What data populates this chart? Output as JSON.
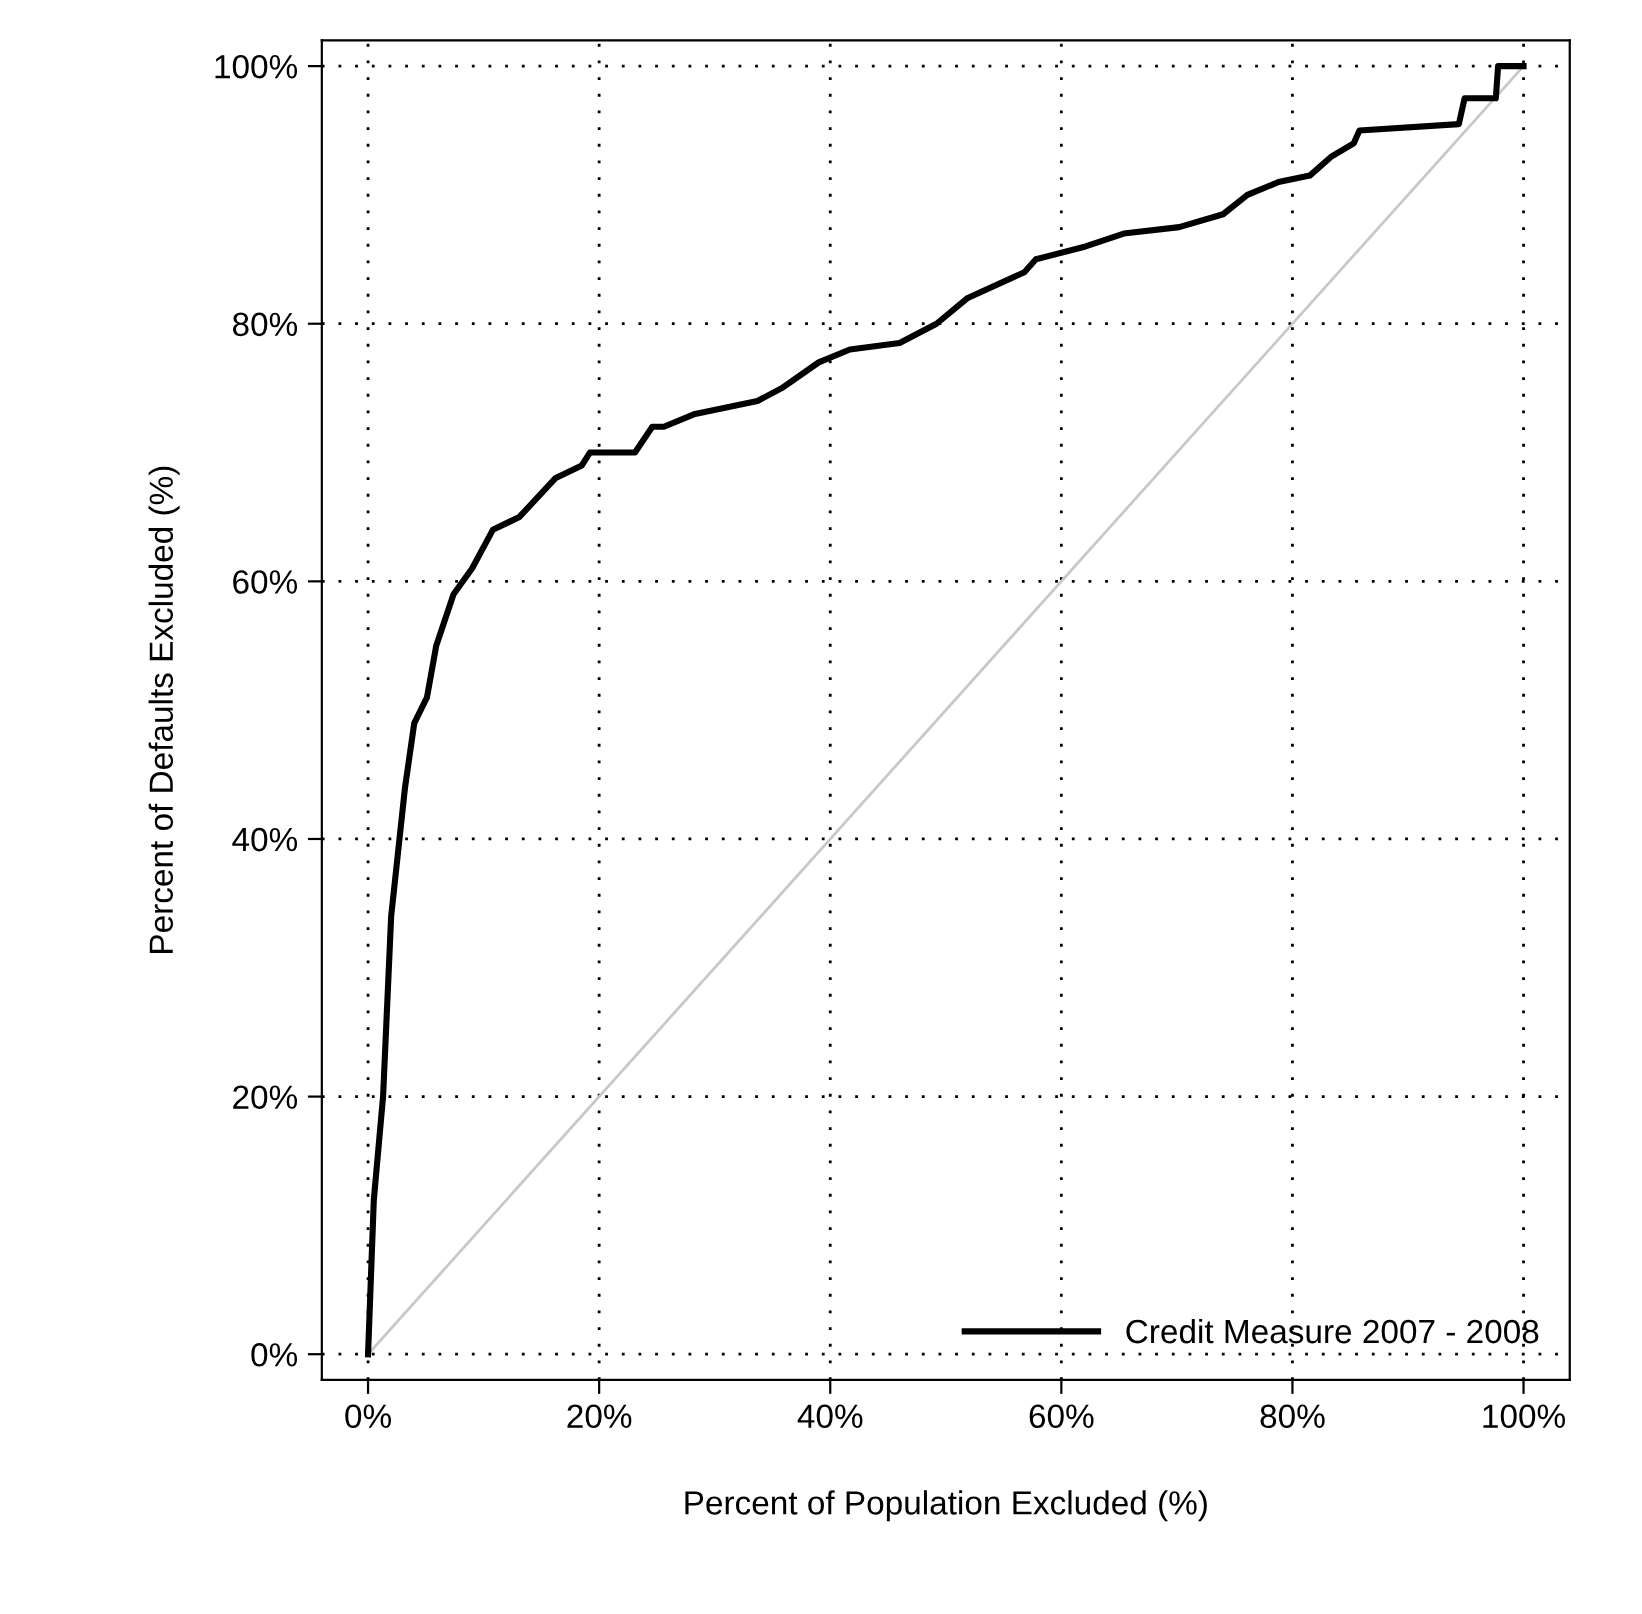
{
  "chart_data": {
    "type": "line",
    "xlabel": "Percent of Population Excluded (%)",
    "ylabel": "Percent of Defaults Excluded (%)",
    "xlim": [
      0,
      100
    ],
    "ylim": [
      0,
      100
    ],
    "xticks": [
      {
        "value": 0,
        "label": "0%"
      },
      {
        "value": 20,
        "label": "20%"
      },
      {
        "value": 40,
        "label": "40%"
      },
      {
        "value": 60,
        "label": "60%"
      },
      {
        "value": 80,
        "label": "80%"
      },
      {
        "value": 100,
        "label": "100%"
      }
    ],
    "yticks": [
      {
        "value": 0,
        "label": "0%"
      },
      {
        "value": 20,
        "label": "20%"
      },
      {
        "value": 40,
        "label": "40%"
      },
      {
        "value": 60,
        "label": "60%"
      },
      {
        "value": 80,
        "label": "80%"
      },
      {
        "value": 100,
        "label": "100%"
      }
    ],
    "grid": true,
    "legend": "bottom right",
    "line_style": "solid",
    "marker": "none",
    "series": [
      {
        "name": "Credit Measure 2007 - 2008",
        "color": "#000000",
        "x": [
          0,
          0.5,
          1.3,
          2.0,
          3.2,
          4.0,
          5.1,
          5.9,
          7.4,
          9.0,
          10.8,
          13.1,
          16.2,
          18.5,
          19.2,
          23.1,
          24.6,
          25.6,
          28.3,
          33.7,
          35.8,
          39,
          41.7,
          46,
          49.2,
          51.9,
          56.8,
          57.8,
          62.1,
          65.4,
          70.2,
          74,
          76.1,
          78.8,
          81.5,
          83.4,
          85.3,
          85.8,
          94.4,
          94.9,
          97.6,
          97.8,
          100
        ],
        "values": [
          0,
          12,
          20,
          34,
          44,
          49,
          51,
          55,
          59,
          61,
          64,
          65,
          68,
          69,
          70,
          70,
          72,
          72,
          73,
          74,
          75,
          77,
          78,
          78.5,
          80,
          82,
          84,
          85,
          86,
          87,
          87.5,
          88.5,
          90,
          91,
          91.5,
          93,
          94,
          95,
          95.5,
          97.5,
          97.5,
          100,
          100
        ]
      },
      {
        "color": "#c8c8c8",
        "x": [
          0,
          100
        ],
        "values": [
          0,
          100
        ]
      }
    ]
  }
}
